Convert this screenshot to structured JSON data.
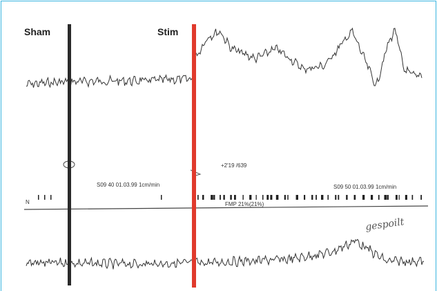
{
  "labels": {
    "sham": "Sham",
    "stim": "Stim"
  },
  "trace_annotations": {
    "marker": "+2'19 /639",
    "recording_1": "S09 40 01.03.99 1cm/min",
    "recording_2": "S09 50 01.03.99 1cm/min",
    "fmp": "FMP 21%(21%)",
    "channel": "N"
  },
  "handwritten_note": "gespoilt"
}
